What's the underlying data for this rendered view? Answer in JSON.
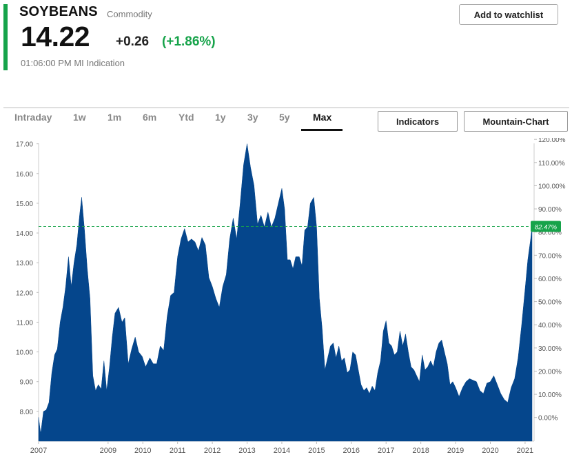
{
  "quote": {
    "symbol": "SOYBEANS",
    "asset_type": "Commodity",
    "price": "14.22",
    "change": "+0.26",
    "change_pct": "(+1.86%)",
    "time": "01:06:00 PM MI Indication",
    "watchlist_label": "Add to watchlist",
    "accent_color": "#16a34a"
  },
  "tabs": [
    {
      "label": "Intraday",
      "active": false
    },
    {
      "label": "1w",
      "active": false
    },
    {
      "label": "1m",
      "active": false
    },
    {
      "label": "6m",
      "active": false
    },
    {
      "label": "Ytd",
      "active": false
    },
    {
      "label": "1y",
      "active": false
    },
    {
      "label": "3y",
      "active": false
    },
    {
      "label": "5y",
      "active": false
    },
    {
      "label": "Max",
      "active": true
    }
  ],
  "toolbar": {
    "indicators_label": "Indicators",
    "chart_type_label": "Mountain-Chart"
  },
  "chart_data": {
    "type": "area",
    "fill_color": "#05468c",
    "reference_color": "#16a34a",
    "current_value": 14.22,
    "current_pct_label": "82.47%",
    "reference_line": 14.22,
    "grid": false,
    "x_range": [
      2007.0,
      2021.2
    ],
    "x_ticks": [
      {
        "v": 2007.0,
        "label": "2007"
      },
      {
        "v": 2009,
        "label": "2009"
      },
      {
        "v": 2010,
        "label": "2010"
      },
      {
        "v": 2011,
        "label": "2011"
      },
      {
        "v": 2012,
        "label": "2012"
      },
      {
        "v": 2013,
        "label": "2013"
      },
      {
        "v": 2014,
        "label": "2014"
      },
      {
        "v": 2015,
        "label": "2015"
      },
      {
        "v": 2016,
        "label": "2016"
      },
      {
        "v": 2017,
        "label": "2017"
      },
      {
        "v": 2018,
        "label": "2018"
      },
      {
        "v": 2019,
        "label": "2019"
      },
      {
        "v": 2020,
        "label": "2020"
      },
      {
        "v": 2021,
        "label": "2021"
      }
    ],
    "y_left": {
      "range": [
        7.0,
        17.2
      ],
      "ticks": [
        "8.00",
        "9.00",
        "10.00",
        "11.00",
        "12.00",
        "13.00",
        "14.00",
        "15.00",
        "16.00",
        "17.00"
      ]
    },
    "y_right": {
      "ticks": [
        {
          "v": 0,
          "label": "0.00%"
        },
        {
          "v": 10,
          "label": "10.00%"
        },
        {
          "v": 20,
          "label": "20.00%"
        },
        {
          "v": 30,
          "label": "30.00%"
        },
        {
          "v": 40,
          "label": "40.00%"
        },
        {
          "v": 50,
          "label": "50.00%"
        },
        {
          "v": 60,
          "label": "60.00%"
        },
        {
          "v": 70,
          "label": "70.00%"
        },
        {
          "v": 80,
          "label": "80.00%"
        },
        {
          "v": 90,
          "label": "90.00%"
        },
        {
          "v": 100,
          "label": "100.00%"
        },
        {
          "v": 110,
          "label": "110.00%"
        },
        {
          "v": 120,
          "label": "120.00%"
        }
      ]
    },
    "points": [
      [
        2007.0,
        7.8
      ],
      [
        2007.06,
        7.25
      ],
      [
        2007.14,
        8.0
      ],
      [
        2007.22,
        8.05
      ],
      [
        2007.3,
        8.3
      ],
      [
        2007.38,
        9.3
      ],
      [
        2007.46,
        9.9
      ],
      [
        2007.54,
        10.1
      ],
      [
        2007.62,
        11.0
      ],
      [
        2007.7,
        11.5
      ],
      [
        2007.78,
        12.2
      ],
      [
        2007.86,
        13.2
      ],
      [
        2007.94,
        12.2
      ],
      [
        2008.02,
        13.0
      ],
      [
        2008.1,
        13.6
      ],
      [
        2008.18,
        14.6
      ],
      [
        2008.24,
        15.2
      ],
      [
        2008.32,
        14.1
      ],
      [
        2008.4,
        12.8
      ],
      [
        2008.48,
        11.8
      ],
      [
        2008.56,
        9.2
      ],
      [
        2008.64,
        8.7
      ],
      [
        2008.72,
        8.9
      ],
      [
        2008.8,
        8.75
      ],
      [
        2008.88,
        9.7
      ],
      [
        2008.96,
        8.7
      ],
      [
        2009.04,
        9.5
      ],
      [
        2009.12,
        10.5
      ],
      [
        2009.2,
        11.3
      ],
      [
        2009.3,
        11.5
      ],
      [
        2009.4,
        11.0
      ],
      [
        2009.48,
        11.15
      ],
      [
        2009.58,
        9.6
      ],
      [
        2009.68,
        10.1
      ],
      [
        2009.78,
        10.5
      ],
      [
        2009.88,
        10.0
      ],
      [
        2009.98,
        9.85
      ],
      [
        2010.08,
        9.5
      ],
      [
        2010.2,
        9.8
      ],
      [
        2010.3,
        9.6
      ],
      [
        2010.4,
        9.6
      ],
      [
        2010.5,
        10.2
      ],
      [
        2010.6,
        10.05
      ],
      [
        2010.7,
        11.2
      ],
      [
        2010.8,
        11.9
      ],
      [
        2010.9,
        12.0
      ],
      [
        2011.0,
        13.2
      ],
      [
        2011.1,
        13.8
      ],
      [
        2011.2,
        14.15
      ],
      [
        2011.3,
        13.7
      ],
      [
        2011.4,
        13.8
      ],
      [
        2011.5,
        13.7
      ],
      [
        2011.6,
        13.4
      ],
      [
        2011.7,
        13.85
      ],
      [
        2011.8,
        13.6
      ],
      [
        2011.9,
        12.5
      ],
      [
        2012.0,
        12.2
      ],
      [
        2012.1,
        11.8
      ],
      [
        2012.2,
        11.5
      ],
      [
        2012.3,
        12.2
      ],
      [
        2012.4,
        12.6
      ],
      [
        2012.5,
        13.8
      ],
      [
        2012.6,
        14.5
      ],
      [
        2012.7,
        13.8
      ],
      [
        2012.8,
        15.0
      ],
      [
        2012.9,
        16.3
      ],
      [
        2013.0,
        17.0
      ],
      [
        2013.1,
        16.2
      ],
      [
        2013.2,
        15.6
      ],
      [
        2013.3,
        14.3
      ],
      [
        2013.4,
        14.6
      ],
      [
        2013.5,
        14.2
      ],
      [
        2013.6,
        14.7
      ],
      [
        2013.7,
        14.2
      ],
      [
        2013.8,
        14.5
      ],
      [
        2013.9,
        15.0
      ],
      [
        2014.0,
        15.5
      ],
      [
        2014.08,
        14.8
      ],
      [
        2014.16,
        13.1
      ],
      [
        2014.24,
        13.1
      ],
      [
        2014.32,
        12.8
      ],
      [
        2014.4,
        13.2
      ],
      [
        2014.5,
        13.2
      ],
      [
        2014.58,
        12.9
      ],
      [
        2014.66,
        14.1
      ],
      [
        2014.74,
        14.2
      ],
      [
        2014.82,
        15.0
      ],
      [
        2014.92,
        15.2
      ],
      [
        2015.0,
        14.2
      ],
      [
        2015.08,
        11.8
      ],
      [
        2015.16,
        10.8
      ],
      [
        2015.24,
        9.4
      ],
      [
        2015.32,
        9.8
      ],
      [
        2015.4,
        10.2
      ],
      [
        2015.48,
        10.3
      ],
      [
        2015.56,
        9.8
      ],
      [
        2015.64,
        10.2
      ],
      [
        2015.72,
        9.7
      ],
      [
        2015.8,
        9.8
      ],
      [
        2015.88,
        9.3
      ],
      [
        2015.96,
        9.4
      ],
      [
        2016.04,
        10.0
      ],
      [
        2016.12,
        9.9
      ],
      [
        2016.2,
        9.4
      ],
      [
        2016.28,
        8.9
      ],
      [
        2016.36,
        8.7
      ],
      [
        2016.44,
        8.8
      ],
      [
        2016.52,
        8.6
      ],
      [
        2016.6,
        8.85
      ],
      [
        2016.68,
        8.7
      ],
      [
        2016.76,
        9.3
      ],
      [
        2016.84,
        9.7
      ],
      [
        2016.92,
        10.7
      ],
      [
        2017.0,
        11.05
      ],
      [
        2017.08,
        10.3
      ],
      [
        2017.16,
        10.2
      ],
      [
        2017.24,
        9.9
      ],
      [
        2017.32,
        10.0
      ],
      [
        2017.4,
        10.7
      ],
      [
        2017.48,
        10.2
      ],
      [
        2017.56,
        10.6
      ],
      [
        2017.64,
        10.0
      ],
      [
        2017.72,
        9.5
      ],
      [
        2017.8,
        9.4
      ],
      [
        2017.88,
        9.2
      ],
      [
        2017.96,
        9.0
      ],
      [
        2018.04,
        9.9
      ],
      [
        2018.12,
        9.4
      ],
      [
        2018.2,
        9.5
      ],
      [
        2018.28,
        9.7
      ],
      [
        2018.36,
        9.5
      ],
      [
        2018.44,
        10.0
      ],
      [
        2018.52,
        10.3
      ],
      [
        2018.6,
        10.4
      ],
      [
        2018.68,
        10.0
      ],
      [
        2018.76,
        9.6
      ],
      [
        2018.84,
        8.9
      ],
      [
        2018.92,
        9.0
      ],
      [
        2019.0,
        8.8
      ],
      [
        2019.1,
        8.5
      ],
      [
        2019.2,
        8.8
      ],
      [
        2019.3,
        9.0
      ],
      [
        2019.4,
        9.1
      ],
      [
        2019.5,
        9.05
      ],
      [
        2019.6,
        9.0
      ],
      [
        2019.7,
        8.7
      ],
      [
        2019.8,
        8.6
      ],
      [
        2019.9,
        8.95
      ],
      [
        2020.0,
        9.0
      ],
      [
        2020.1,
        9.2
      ],
      [
        2020.2,
        8.9
      ],
      [
        2020.3,
        8.6
      ],
      [
        2020.4,
        8.4
      ],
      [
        2020.5,
        8.3
      ],
      [
        2020.6,
        8.8
      ],
      [
        2020.7,
        9.1
      ],
      [
        2020.8,
        9.8
      ],
      [
        2020.9,
        10.9
      ],
      [
        2021.0,
        12.1
      ],
      [
        2021.08,
        13.1
      ],
      [
        2021.16,
        13.8
      ],
      [
        2021.2,
        14.22
      ]
    ]
  }
}
